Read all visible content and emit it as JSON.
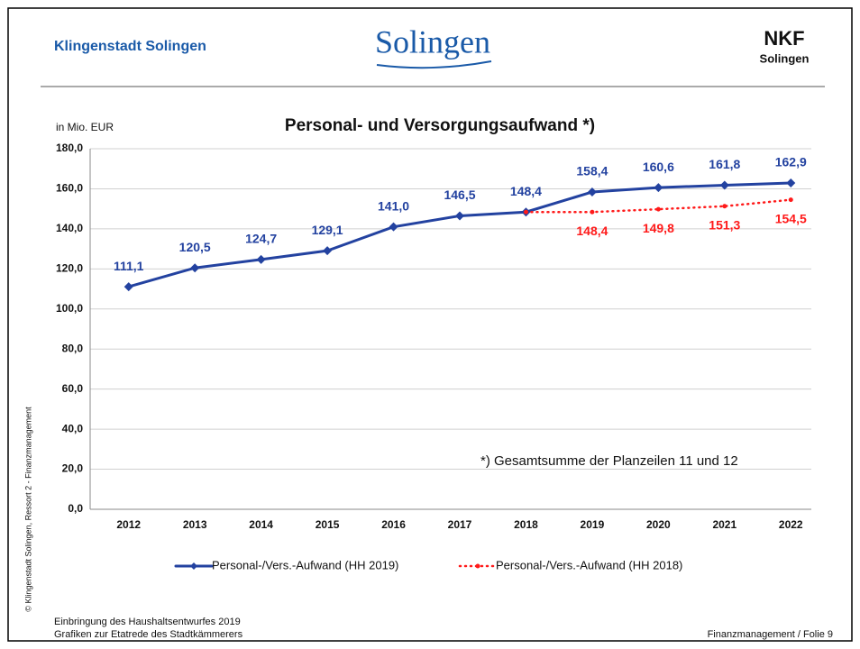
{
  "header": {
    "left": "Klingenstadt Solingen",
    "logo": "Solingen",
    "nkf": "NKF",
    "nkf_sub": "Solingen"
  },
  "side_note": "© Klingenstadt Solingen, Ressort 2 - Finanzmanagement",
  "footer": {
    "line1": "Einbringung des Haushaltsentwurfes 2019",
    "line2": "Grafiken zur Etatrede des Stadtkämmerers",
    "right": "Finanzmanagement  / Folie 9"
  },
  "chart_data": {
    "type": "line",
    "title": "Personal- und Versorgungsaufwand *)",
    "unit": "in Mio. EUR",
    "annotation": "*) Gesamtsumme der Planzeilen 11 und 12",
    "categories": [
      "2012",
      "2013",
      "2014",
      "2015",
      "2016",
      "2017",
      "2018",
      "2019",
      "2020",
      "2021",
      "2022"
    ],
    "series": [
      {
        "name": "Personal-/Vers.-Aufwand (HH 2019)",
        "color": "#2342a0",
        "style": "solid",
        "values": [
          111.1,
          120.5,
          124.7,
          129.1,
          141.0,
          146.5,
          148.4,
          158.4,
          160.6,
          161.8,
          162.9
        ],
        "value_labels": [
          "111,1",
          "120,5",
          "124,7",
          "129,1",
          "141,0",
          "146,5",
          "148,4",
          "158,4",
          "160,6",
          "161,8",
          "162,9"
        ]
      },
      {
        "name": "Personal-/Vers.-Aufwand (HH 2018)",
        "color": "#ff1a1a",
        "style": "dotted",
        "values": [
          null,
          null,
          null,
          null,
          null,
          null,
          148.4,
          148.4,
          149.8,
          151.3,
          154.5
        ],
        "value_labels": [
          null,
          null,
          null,
          null,
          null,
          null,
          null,
          "148,4",
          "149,8",
          "151,3",
          "154,5"
        ]
      }
    ],
    "ylim": [
      0,
      180
    ],
    "yticks": [
      {
        "value": 0,
        "label": "0,0"
      },
      {
        "value": 20,
        "label": "20,0"
      },
      {
        "value": 40,
        "label": "40,0"
      },
      {
        "value": 60,
        "label": "60,0"
      },
      {
        "value": 80,
        "label": "80,0"
      },
      {
        "value": 100,
        "label": "100,0"
      },
      {
        "value": 120,
        "label": "120,0"
      },
      {
        "value": 140,
        "label": "140,0"
      },
      {
        "value": 160,
        "label": "160,0"
      },
      {
        "value": 180,
        "label": "180,0"
      }
    ],
    "grid": true
  }
}
